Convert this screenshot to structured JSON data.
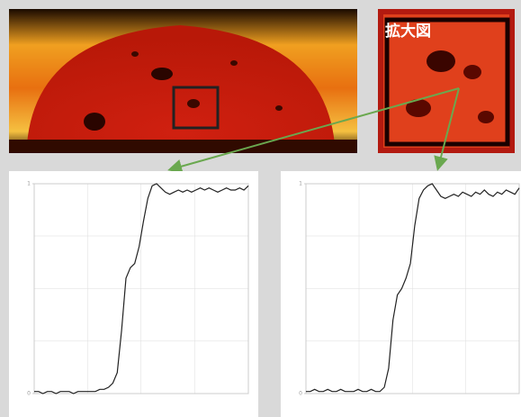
{
  "label": "拡大図",
  "chart_data": [
    {
      "type": "line",
      "x": [
        0,
        1,
        2,
        3,
        4,
        5,
        6,
        7,
        8,
        9,
        10,
        11,
        12,
        13,
        14,
        15,
        16,
        17,
        18,
        19,
        20,
        21,
        22,
        23,
        24,
        25,
        26,
        27,
        28,
        29,
        30,
        31,
        32,
        33,
        34,
        35,
        36,
        37,
        38,
        39,
        40,
        41,
        42,
        43,
        44,
        45,
        46,
        47,
        48,
        49
      ],
      "xlim": [
        0,
        49
      ],
      "ylim": [
        0,
        1
      ],
      "yticks": [
        0,
        1
      ],
      "series": [
        {
          "color": "#222222",
          "values": [
            0.01,
            0.01,
            0,
            0.01,
            0.01,
            0,
            0.01,
            0.01,
            0.01,
            0,
            0.01,
            0.01,
            0.01,
            0.01,
            0.01,
            0.02,
            0.02,
            0.03,
            0.05,
            0.1,
            0.3,
            0.55,
            0.6,
            0.62,
            0.7,
            0.82,
            0.93,
            0.99,
            1.0,
            0.98,
            0.96,
            0.95,
            0.96,
            0.97,
            0.96,
            0.97,
            0.96,
            0.97,
            0.98,
            0.97,
            0.98,
            0.97,
            0.96,
            0.97,
            0.98,
            0.97,
            0.97,
            0.98,
            0.97,
            0.99
          ]
        }
      ]
    },
    {
      "type": "line",
      "x": [
        0,
        1,
        2,
        3,
        4,
        5,
        6,
        7,
        8,
        9,
        10,
        11,
        12,
        13,
        14,
        15,
        16,
        17,
        18,
        19,
        20,
        21,
        22,
        23,
        24,
        25,
        26,
        27,
        28,
        29,
        30,
        31,
        32,
        33,
        34,
        35,
        36,
        37,
        38,
        39,
        40,
        41,
        42,
        43,
        44,
        45,
        46,
        47,
        48,
        49
      ],
      "xlim": [
        0,
        49
      ],
      "ylim": [
        0,
        1
      ],
      "yticks": [
        0,
        1
      ],
      "series": [
        {
          "color": "#222222",
          "values": [
            0.01,
            0.01,
            0.02,
            0.01,
            0.01,
            0.02,
            0.01,
            0.01,
            0.02,
            0.01,
            0.01,
            0.01,
            0.02,
            0.01,
            0.01,
            0.02,
            0.01,
            0.01,
            0.03,
            0.12,
            0.35,
            0.47,
            0.5,
            0.55,
            0.62,
            0.8,
            0.93,
            0.97,
            0.99,
            1.0,
            0.97,
            0.94,
            0.93,
            0.94,
            0.95,
            0.94,
            0.96,
            0.95,
            0.94,
            0.96,
            0.95,
            0.97,
            0.95,
            0.94,
            0.96,
            0.95,
            0.97,
            0.96,
            0.95,
            0.98
          ]
        }
      ]
    }
  ]
}
